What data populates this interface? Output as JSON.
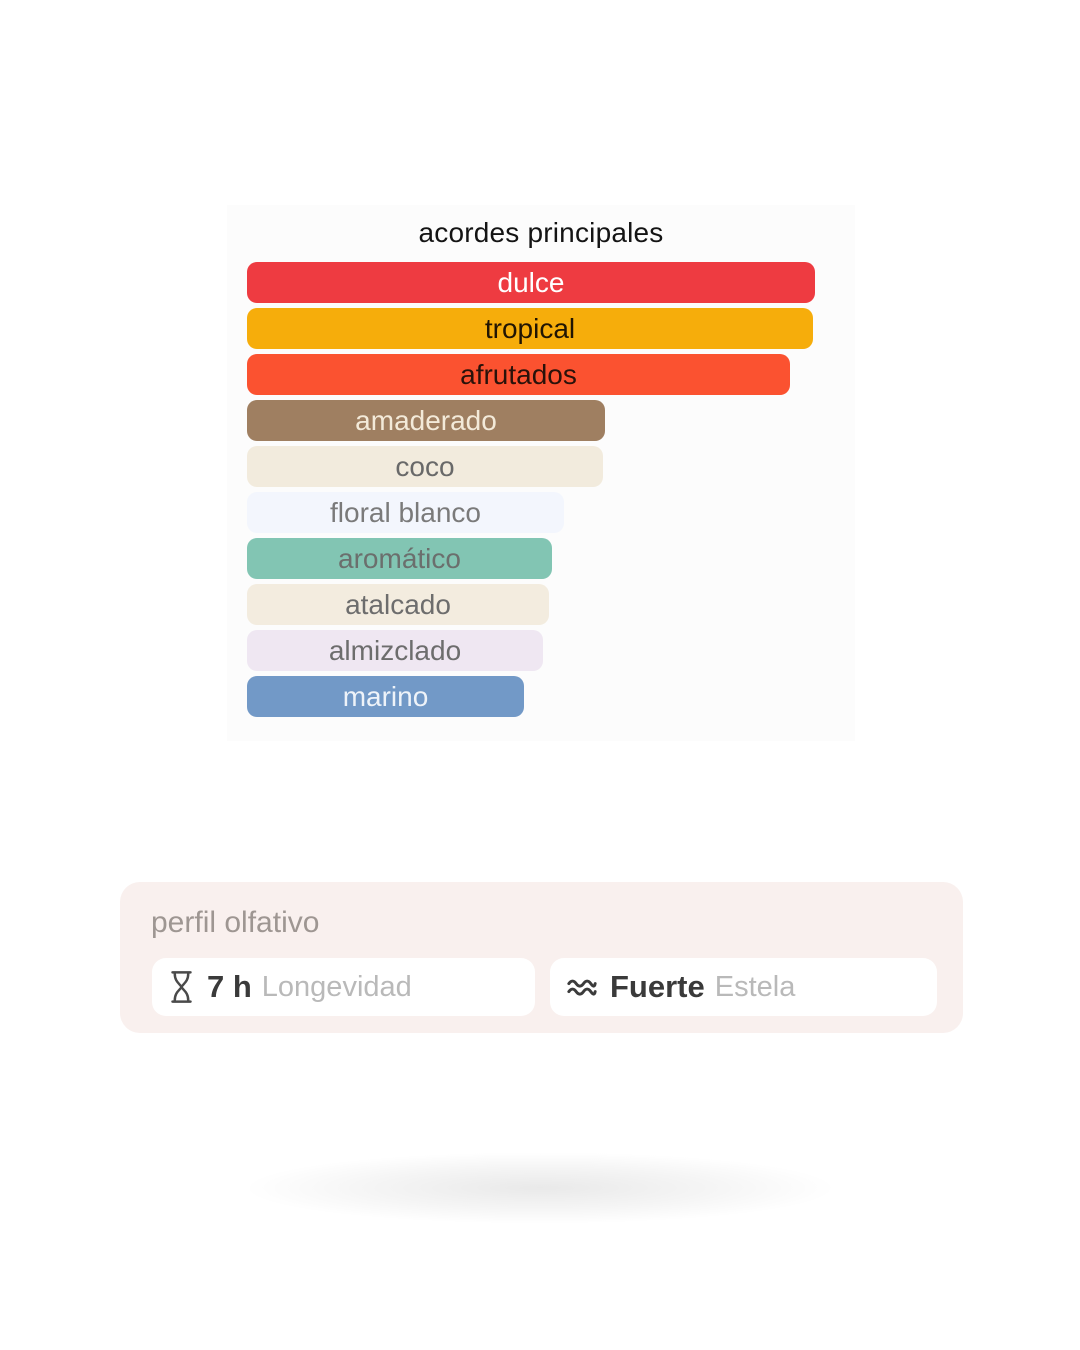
{
  "chart_data": {
    "type": "bar",
    "orientation": "horizontal",
    "title": "acordes principales",
    "value_unit": "relative accord strength, % of strongest bar (estimated from bar widths)",
    "categories": [
      "dulce",
      "tropical",
      "afrutados",
      "amaderado",
      "coco",
      "floral blanco",
      "aromático",
      "atalcado",
      "almizclado",
      "marino"
    ],
    "values": [
      100,
      99.6,
      95.6,
      63.0,
      62.7,
      55.8,
      53.7,
      53.2,
      52.1,
      48.8
    ],
    "bars": [
      {
        "label": "dulce",
        "value": 100,
        "color": "#ee3b41",
        "text_color": "#ffffff"
      },
      {
        "label": "tropical",
        "value": 99.6,
        "color": "#f6ad0b",
        "text_color": "#211503"
      },
      {
        "label": "afrutados",
        "value": 95.6,
        "color": "#fb5230",
        "text_color": "#29120a"
      },
      {
        "label": "amaderado",
        "value": 63.0,
        "color": "#9f7f61",
        "text_color": "#f3ead9"
      },
      {
        "label": "coco",
        "value": 62.7,
        "color": "#f2ebdd",
        "text_color": "#696969"
      },
      {
        "label": "floral blanco",
        "value": 55.8,
        "color": "#f3f6fd",
        "text_color": "#7a7a7a"
      },
      {
        "label": "aromático",
        "value": 53.7,
        "color": "#82c5b3",
        "text_color": "#6b6f6d"
      },
      {
        "label": "atalcado",
        "value": 53.2,
        "color": "#f3ecdf",
        "text_color": "#6d6d6d"
      },
      {
        "label": "almizclado",
        "value": 52.1,
        "color": "#efe7f2",
        "text_color": "#6d6d6d"
      },
      {
        "label": "marino",
        "value": 48.8,
        "color": "#7299c7",
        "text_color": "#eef3f9"
      }
    ]
  },
  "profile": {
    "title": "perfil olfativo",
    "card_bg": "#f9f0ee",
    "stats": [
      {
        "icon": "hourglass-icon",
        "value": "7 h",
        "label": "Longevidad"
      },
      {
        "icon": "waves-icon",
        "value": "Fuerte",
        "label": "Estela"
      }
    ]
  }
}
